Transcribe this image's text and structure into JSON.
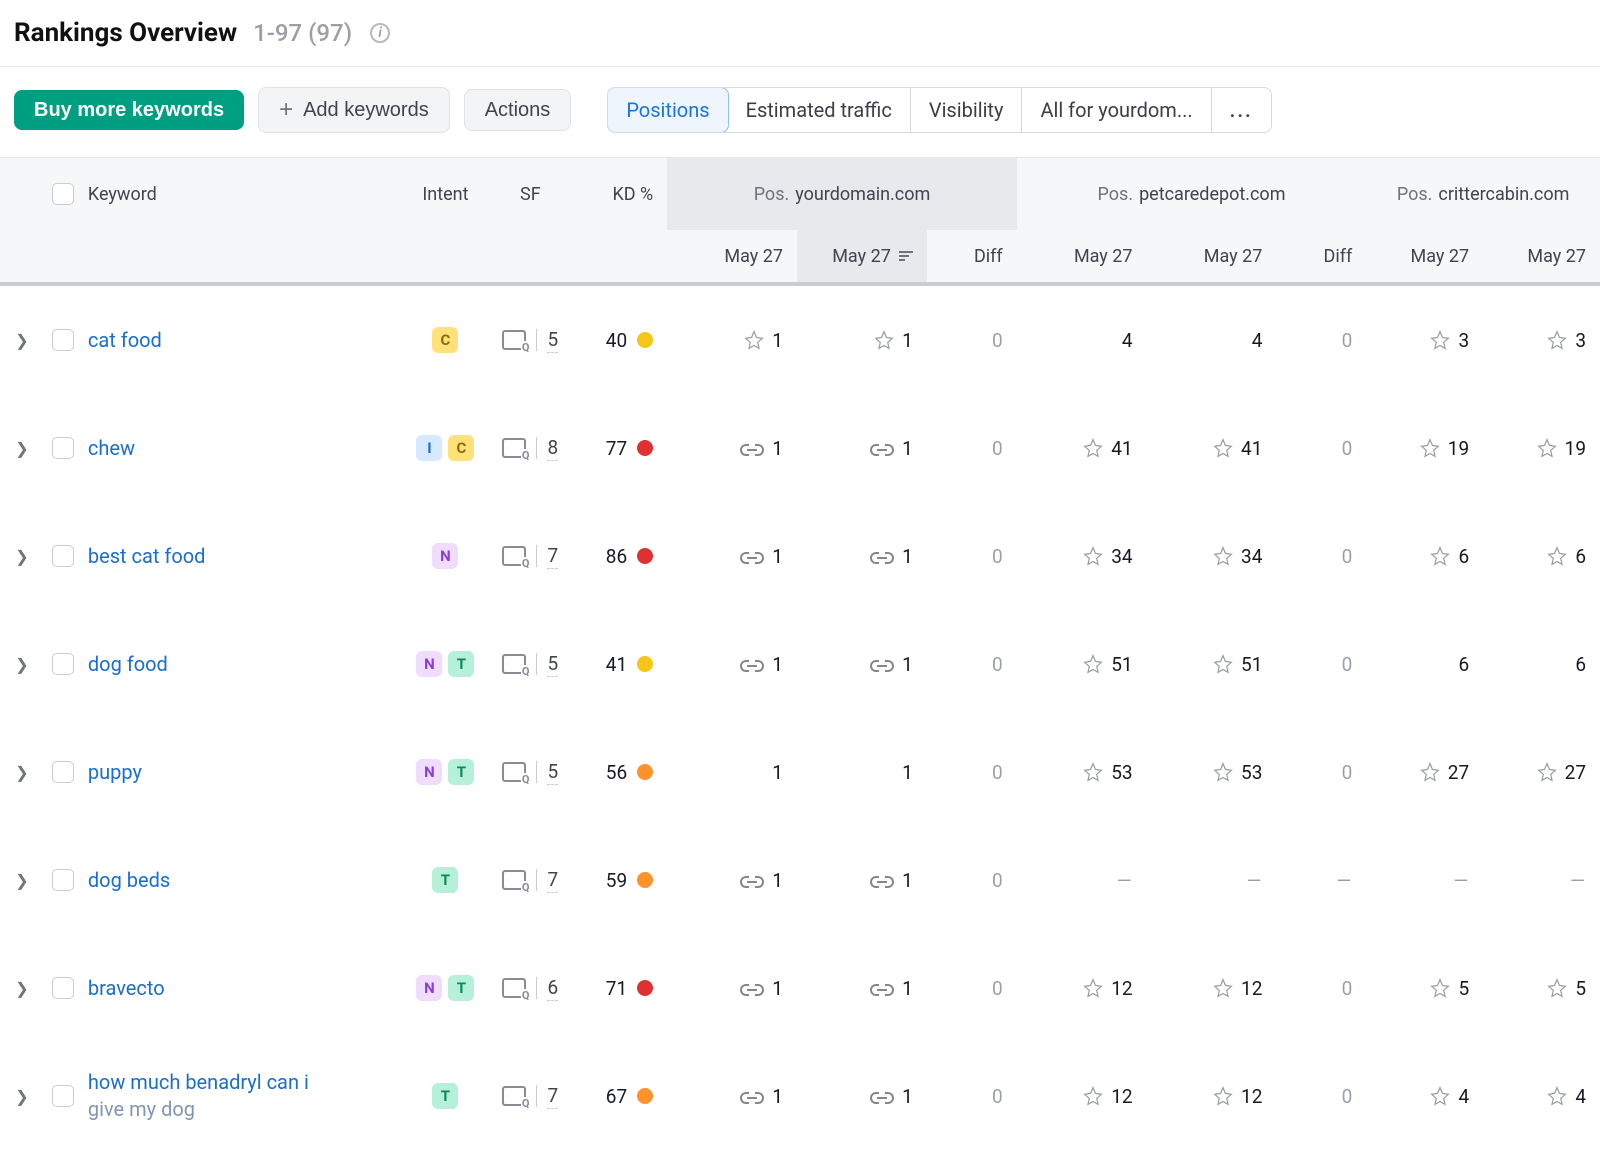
{
  "header": {
    "title": "Rankings Overview",
    "range": "1-97 (97)"
  },
  "toolbar": {
    "buy_btn": "Buy more keywords",
    "add_btn": "Add keywords",
    "actions_btn": "Actions"
  },
  "tabs": {
    "positions": "Positions",
    "traffic": "Estimated traffic",
    "visibility": "Visibility",
    "allfor": "All for yourdom...",
    "more": "..."
  },
  "columns": {
    "keyword": "Keyword",
    "intent": "Intent",
    "sf": "SF",
    "kd": "KD %",
    "pos_label": "Pos.",
    "diff": "Diff",
    "date": "May 27"
  },
  "domains": {
    "d1": "yourdomain.com",
    "d2": "petcaredepot.com",
    "d3": "crittercabin.com"
  },
  "intent_colors": {
    "C": {
      "bg": "#ffe17a",
      "fg": "#8a6d00"
    },
    "I": {
      "bg": "#d6e9ff",
      "fg": "#1a6dd4"
    },
    "N": {
      "bg": "#efdcff",
      "fg": "#8b3dd6"
    },
    "T": {
      "bg": "#b6f0d9",
      "fg": "#0a8a5f"
    }
  },
  "kd_palette": {
    "yellow": "#f5c518",
    "red": "#e03131",
    "orange": "#ff922b"
  },
  "rows": [
    {
      "keyword": "cat food",
      "intents": [
        "C"
      ],
      "sf": "5",
      "kd": "40",
      "kd_color": "yellow",
      "d1a": {
        "icon": "star",
        "val": "1"
      },
      "d1b": {
        "icon": "star",
        "val": "1"
      },
      "d1diff": "0",
      "d2a": {
        "val": "4"
      },
      "d2b": {
        "val": "4"
      },
      "d2diff": "0",
      "d3a": {
        "icon": "star",
        "val": "3"
      },
      "d3b": {
        "icon": "star",
        "val": "3"
      }
    },
    {
      "keyword": "chew",
      "intents": [
        "I",
        "C"
      ],
      "sf": "8",
      "kd": "77",
      "kd_color": "red",
      "d1a": {
        "icon": "link",
        "val": "1"
      },
      "d1b": {
        "icon": "link",
        "val": "1"
      },
      "d1diff": "0",
      "d2a": {
        "icon": "star",
        "val": "41"
      },
      "d2b": {
        "icon": "star",
        "val": "41"
      },
      "d2diff": "0",
      "d3a": {
        "icon": "star",
        "val": "19"
      },
      "d3b": {
        "icon": "star",
        "val": "19"
      }
    },
    {
      "keyword": "best cat food",
      "intents": [
        "N"
      ],
      "sf": "7",
      "kd": "86",
      "kd_color": "red",
      "d1a": {
        "icon": "link",
        "val": "1"
      },
      "d1b": {
        "icon": "link",
        "val": "1"
      },
      "d1diff": "0",
      "d2a": {
        "icon": "star",
        "val": "34"
      },
      "d2b": {
        "icon": "star",
        "val": "34"
      },
      "d2diff": "0",
      "d3a": {
        "icon": "star",
        "val": "6"
      },
      "d3b": {
        "icon": "star",
        "val": "6"
      }
    },
    {
      "keyword": "dog food",
      "intents": [
        "N",
        "T"
      ],
      "sf": "5",
      "kd": "41",
      "kd_color": "yellow",
      "d1a": {
        "icon": "link",
        "val": "1"
      },
      "d1b": {
        "icon": "link",
        "val": "1"
      },
      "d1diff": "0",
      "d2a": {
        "icon": "star",
        "val": "51"
      },
      "d2b": {
        "icon": "star",
        "val": "51"
      },
      "d2diff": "0",
      "d3a": {
        "val": "6"
      },
      "d3b": {
        "val": "6"
      }
    },
    {
      "keyword": "puppy",
      "intents": [
        "N",
        "T"
      ],
      "sf": "5",
      "kd": "56",
      "kd_color": "orange",
      "d1a": {
        "val": "1"
      },
      "d1b": {
        "val": "1"
      },
      "d1diff": "0",
      "d2a": {
        "icon": "star",
        "val": "53"
      },
      "d2b": {
        "icon": "star",
        "val": "53"
      },
      "d2diff": "0",
      "d3a": {
        "icon": "star",
        "val": "27"
      },
      "d3b": {
        "icon": "star",
        "val": "27"
      }
    },
    {
      "keyword": "dog beds",
      "intents": [
        "T"
      ],
      "sf": "7",
      "kd": "59",
      "kd_color": "orange",
      "d1a": {
        "icon": "link",
        "val": "1"
      },
      "d1b": {
        "icon": "link",
        "val": "1"
      },
      "d1diff": "0",
      "d2a": {
        "dash": true
      },
      "d2b": {
        "dash": true
      },
      "d2diff": "—",
      "d3a": {
        "dash": true
      },
      "d3b": {
        "dash": true
      }
    },
    {
      "keyword": "bravecto",
      "intents": [
        "N",
        "T"
      ],
      "sf": "6",
      "kd": "71",
      "kd_color": "red",
      "d1a": {
        "icon": "link",
        "val": "1"
      },
      "d1b": {
        "icon": "link",
        "val": "1"
      },
      "d1diff": "0",
      "d2a": {
        "icon": "star",
        "val": "12"
      },
      "d2b": {
        "icon": "star",
        "val": "12"
      },
      "d2diff": "0",
      "d3a": {
        "icon": "star",
        "val": "5"
      },
      "d3b": {
        "icon": "star",
        "val": "5"
      }
    },
    {
      "keyword": "how much benadryl can i",
      "keyword_line2": "give my dog",
      "intents": [
        "T"
      ],
      "sf": "7",
      "kd": "67",
      "kd_color": "orange",
      "d1a": {
        "icon": "link",
        "val": "1"
      },
      "d1b": {
        "icon": "link",
        "val": "1"
      },
      "d1diff": "0",
      "d2a": {
        "icon": "star",
        "val": "12"
      },
      "d2b": {
        "icon": "star",
        "val": "12"
      },
      "d2diff": "0",
      "d3a": {
        "icon": "star",
        "val": "4"
      },
      "d3b": {
        "icon": "star",
        "val": "4"
      }
    }
  ]
}
